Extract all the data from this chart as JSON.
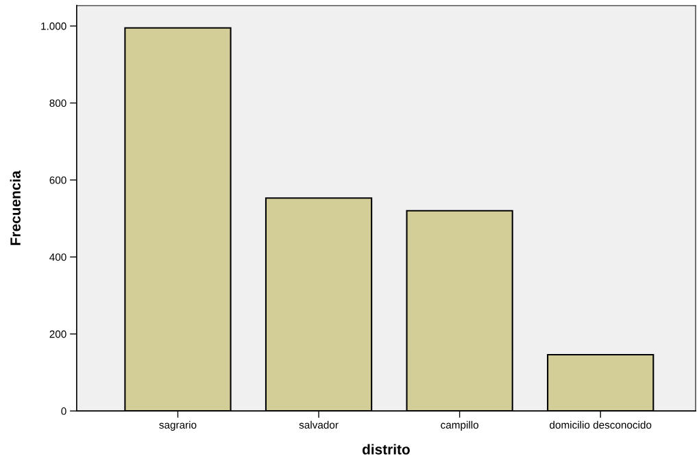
{
  "chart_data": {
    "type": "bar",
    "xlabel": "distrito",
    "ylabel": "Frecuencia",
    "categories": [
      "sagrario",
      "salvador",
      "campillo",
      "domicilio desconocido"
    ],
    "values": [
      995,
      553,
      520,
      146
    ],
    "color": "#d3ce97",
    "ylim": [
      0,
      1053
    ],
    "yticks": [
      0,
      200,
      400,
      600,
      800,
      {
        "value": 1000,
        "label": "1.000"
      }
    ],
    "grid": false,
    "legend": false
  }
}
